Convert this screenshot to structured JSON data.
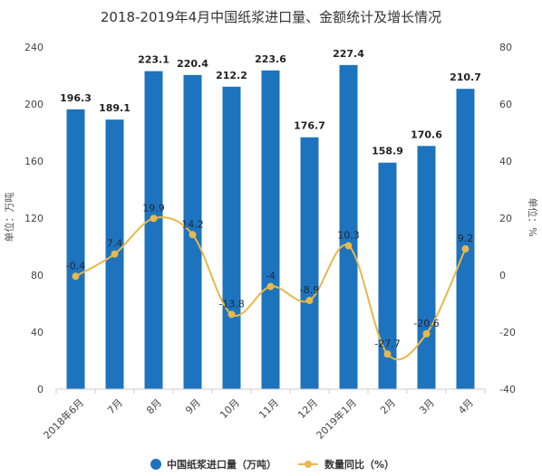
{
  "chart_data": {
    "type": "bar",
    "title": "2018-2019年4月中国纸浆进口量、金额统计及增长情况",
    "categories": [
      "2018年6月",
      "7月",
      "8月",
      "9月",
      "10月",
      "11月",
      "12月",
      "2019年1月",
      "2月",
      "3月",
      "4月"
    ],
    "series": [
      {
        "name": "中国纸浆进口量（万吨）",
        "type": "bar",
        "axis": "left",
        "color": "#1e73be",
        "values": [
          196.3,
          189.1,
          223.1,
          220.4,
          212.2,
          223.6,
          176.7,
          227.4,
          158.9,
          170.6,
          210.7
        ],
        "labels": [
          "196.3",
          "189.1",
          "223.1",
          "220.4",
          "212.2",
          "223.6",
          "176.7",
          "227.4",
          "158.9",
          "170.6",
          "210.7"
        ]
      },
      {
        "name": "数量同比（%）",
        "type": "line",
        "axis": "right",
        "color": "#e8b84a",
        "values": [
          -0.4,
          7.4,
          19.9,
          14.2,
          -13.8,
          -4,
          -8.9,
          10.3,
          -27.7,
          -20.6,
          9.2
        ],
        "labels": [
          "-0.4",
          "7.4",
          "19.9",
          "14.2",
          "-13.8",
          "-4",
          "-8.9",
          "10.3",
          "-27.7",
          "-20.6",
          "9.2"
        ]
      }
    ],
    "ylabel": "单位：万吨",
    "y2label": "单位：%",
    "ylim": [
      0,
      240
    ],
    "y2lim": [
      -40,
      80
    ],
    "yticks": [
      "0",
      "40",
      "80",
      "120",
      "160",
      "200",
      "240"
    ],
    "y2ticks": [
      "-40",
      "-20",
      "0",
      "20",
      "40",
      "60",
      "80"
    ],
    "grid": false,
    "legend_position": "bottom"
  }
}
